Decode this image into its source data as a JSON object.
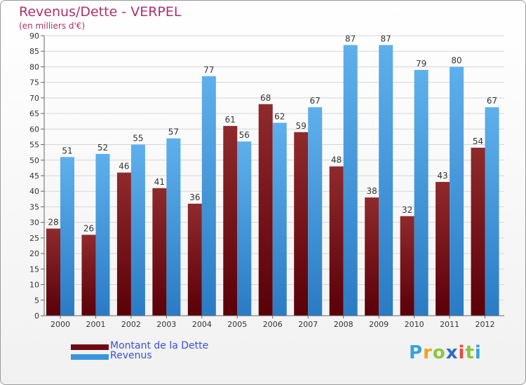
{
  "title": "Revenus/Dette - VERPEL",
  "subtitle": "(en milliers d'€)",
  "legend": [
    {
      "label": "Montant de la Dette",
      "color": "#6e0b12"
    },
    {
      "label": "Revenus",
      "color": "#3b95dc"
    }
  ],
  "logo": "Proxiti",
  "colors": {
    "dette": "#6e0b12",
    "revenus": "#3b95dc",
    "title": "#b0306a",
    "legend_text": "#3a4fd8"
  },
  "chart_data": {
    "type": "bar",
    "title": "Revenus/Dette - VERPEL",
    "subtitle": "(en milliers d'€)",
    "categories": [
      "2000",
      "2001",
      "2002",
      "2003",
      "2004",
      "2005",
      "2006",
      "2007",
      "2008",
      "2009",
      "2010",
      "2011",
      "2012"
    ],
    "series": [
      {
        "name": "Montant de la Dette",
        "values": [
          28,
          26,
          46,
          41,
          36,
          61,
          68,
          59,
          48,
          38,
          32,
          43,
          54
        ]
      },
      {
        "name": "Revenus",
        "values": [
          51,
          52,
          55,
          57,
          77,
          56,
          62,
          67,
          87,
          87,
          79,
          80,
          67
        ]
      }
    ],
    "ylim": [
      0,
      90
    ],
    "yticks": [
      0,
      5,
      10,
      15,
      20,
      25,
      30,
      35,
      40,
      45,
      50,
      55,
      60,
      65,
      70,
      75,
      80,
      85,
      90
    ],
    "grid": true,
    "legend_position": "bottom-left"
  }
}
